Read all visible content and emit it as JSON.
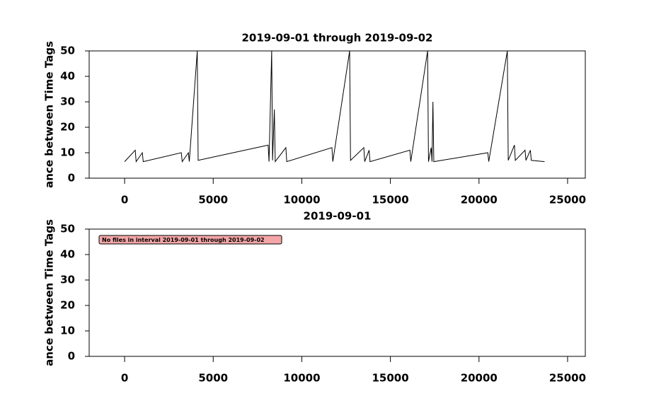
{
  "chart_data": [
    {
      "type": "line",
      "title": "2019-09-01 through 2019-09-02",
      "ylabel": "ance between Time Tags",
      "xlim": [
        -2000,
        26000
      ],
      "xticks": [
        0,
        5000,
        10000,
        15000,
        20000,
        25000
      ],
      "ylim": [
        0,
        50
      ],
      "yticks": [
        0,
        10,
        20,
        30,
        40,
        50
      ],
      "x": [
        0,
        600,
        650,
        1000,
        1050,
        3200,
        3250,
        3600,
        3650,
        4100,
        4150,
        8100,
        8150,
        8300,
        8350,
        8450,
        8500,
        9100,
        9150,
        11700,
        11750,
        12700,
        12750,
        13500,
        13550,
        13800,
        13850,
        16100,
        16150,
        17100,
        17150,
        17300,
        17350,
        17400,
        17450,
        20500,
        20550,
        21600,
        21650,
        22000,
        22050,
        22600,
        22650,
        22900,
        22950,
        23700
      ],
      "series": [
        {
          "color": "#000000",
          "values": [
            6.5,
            11,
            6.5,
            10,
            6.5,
            10,
            6.5,
            10,
            6.5,
            50,
            7,
            13,
            6.5,
            50,
            7,
            27,
            6.5,
            12,
            6.5,
            12,
            6.5,
            50,
            7,
            12,
            6.5,
            11,
            6.5,
            11,
            6.5,
            50,
            6.5,
            12,
            6.5,
            30,
            6.5,
            10,
            6.5,
            50,
            7,
            13,
            7,
            11,
            7,
            11,
            7,
            6.5
          ]
        }
      ]
    },
    {
      "type": "line",
      "title": "2019-09-01",
      "ylabel": "ance between Time Tags",
      "annotation": "No files in interval 2019-09-01 through 2019-09-02",
      "xlim": [
        -2000,
        26000
      ],
      "xticks": [
        0,
        5000,
        10000,
        15000,
        20000,
        25000
      ],
      "ylim": [
        0,
        50
      ],
      "yticks": [
        0,
        10,
        20,
        30,
        40,
        50
      ]
    }
  ]
}
